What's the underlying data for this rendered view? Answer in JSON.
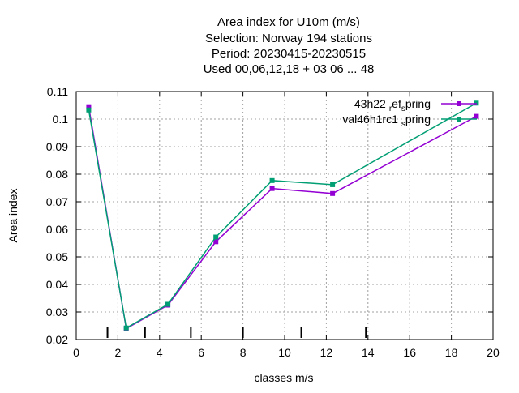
{
  "chart_data": {
    "type": "line",
    "title_lines": [
      "Area index  for U10m (m/s)",
      "Selection: Norway    194 stations",
      "Period: 20230415-20230515",
      "Used  00,06,12,18  + 03 06 ... 48"
    ],
    "xlabel": "classes m/s",
    "ylabel": "Area index",
    "xlim": [
      0,
      20
    ],
    "ylim": [
      0.02,
      0.11
    ],
    "xticks": [
      0,
      2,
      4,
      6,
      8,
      10,
      12,
      14,
      16,
      18,
      20
    ],
    "yticks": [
      0.02,
      0.03,
      0.04,
      0.05,
      0.06,
      0.07,
      0.08,
      0.09,
      0.1,
      0.11
    ],
    "ytick_labels": [
      "0.02",
      "0.03",
      "0.04",
      "0.05",
      "0.06",
      "0.07",
      "0.08",
      "0.09",
      "0.1",
      "0.11"
    ],
    "grid": true,
    "legend_position": "top-right",
    "class_boundaries": [
      1.5,
      3.3,
      5.5,
      8.0,
      10.8,
      13.9
    ],
    "series": [
      {
        "name_parts": {
          "main": "43h22",
          "sub1": "r",
          "mid": "ef",
          "sub2": "s",
          "end": "pring"
        },
        "color": "#9400d3",
        "x": [
          0.6,
          2.4,
          4.4,
          6.7,
          9.4,
          12.3,
          19.2
        ],
        "y": [
          0.1045,
          0.024,
          0.0325,
          0.0555,
          0.0748,
          0.073,
          0.101
        ]
      },
      {
        "name_parts": {
          "main": "val46h1rc1",
          "sub1": "s",
          "mid": "",
          "sub2": "",
          "end": "pring"
        },
        "color": "#009e73",
        "x": [
          0.6,
          2.4,
          4.4,
          6.7,
          9.4,
          12.3,
          19.2
        ],
        "y": [
          0.1033,
          0.0242,
          0.0328,
          0.0572,
          0.0777,
          0.0762,
          0.1058
        ]
      }
    ]
  }
}
